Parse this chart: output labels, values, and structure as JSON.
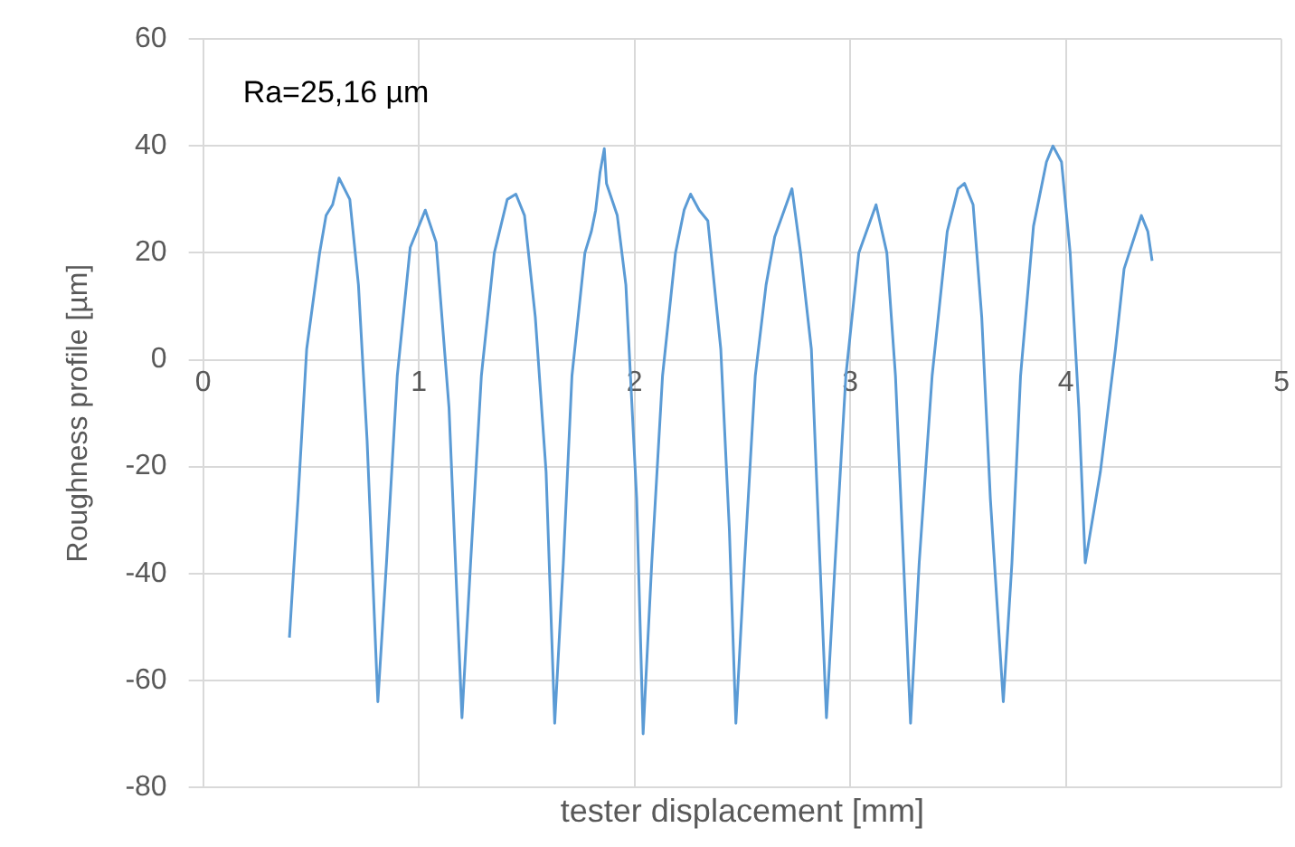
{
  "chart_data": {
    "type": "line",
    "xlabel": "tester displacement [mm]",
    "ylabel": "Roughness profile [µm]",
    "annotations": [
      "Ra=25,16 µm"
    ],
    "xlim": [
      0,
      5
    ],
    "xticks": [
      0,
      1,
      2,
      3,
      4,
      5
    ],
    "ylim": [
      -80,
      60
    ],
    "yticks": [
      -80,
      -60,
      -40,
      -20,
      0,
      20,
      40,
      60
    ],
    "grid": true,
    "legend": false,
    "marker": "none",
    "line_style": "solid",
    "series": [
      {
        "color": "#5b9bd5",
        "x": [
          0.4,
          0.44,
          0.48,
          0.54,
          0.57,
          0.6,
          0.63,
          0.68,
          0.72,
          0.76,
          0.81,
          0.85,
          0.9,
          0.96,
          1.03,
          1.08,
          1.14,
          1.2,
          1.24,
          1.29,
          1.35,
          1.41,
          1.45,
          1.49,
          1.54,
          1.59,
          1.63,
          1.67,
          1.71,
          1.77,
          1.8,
          1.82,
          1.84,
          1.86,
          1.87,
          1.92,
          1.96,
          2.01,
          2.04,
          2.08,
          2.13,
          2.19,
          2.23,
          2.26,
          2.3,
          2.34,
          2.4,
          2.44,
          2.47,
          2.51,
          2.56,
          2.61,
          2.65,
          2.73,
          2.77,
          2.82,
          2.86,
          2.89,
          2.93,
          2.98,
          3.04,
          3.12,
          3.17,
          3.21,
          3.28,
          3.32,
          3.38,
          3.45,
          3.5,
          3.53,
          3.57,
          3.61,
          3.65,
          3.71,
          3.75,
          3.79,
          3.85,
          3.91,
          3.94,
          3.98,
          4.02,
          4.06,
          4.09,
          4.16,
          4.23,
          4.27,
          4.35,
          4.38,
          4.4
        ],
        "values": [
          -52,
          -26,
          2,
          20,
          27,
          29,
          34,
          30,
          14,
          -15,
          -64,
          -38,
          -3,
          21,
          28,
          22,
          -9,
          -67,
          -38,
          -3,
          20,
          30,
          31,
          27,
          8,
          -21,
          -68,
          -38,
          -3,
          20,
          24,
          28,
          35,
          39.5,
          33,
          27,
          14,
          -26,
          -70,
          -38,
          -3,
          20,
          28,
          31,
          28,
          26,
          2,
          -32,
          -68,
          -38,
          -3,
          14,
          23,
          32,
          20,
          2,
          -38,
          -67,
          -38,
          -3,
          20,
          29,
          20,
          -3,
          -68,
          -38,
          -3,
          24,
          32,
          33,
          29,
          8,
          -26,
          -64,
          -38,
          -3,
          25,
          37,
          40,
          37,
          20,
          -9,
          -38,
          -21,
          2,
          17,
          27,
          24,
          18.5
        ]
      }
    ]
  }
}
